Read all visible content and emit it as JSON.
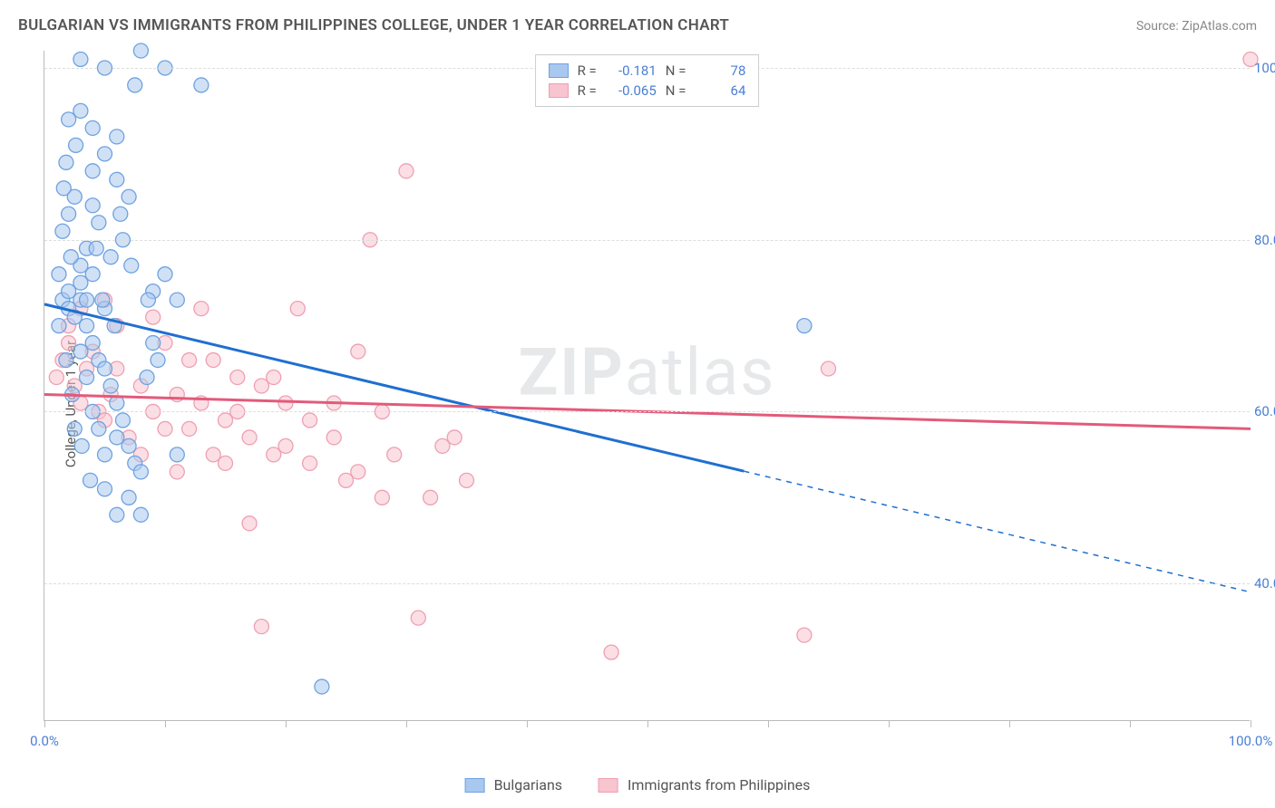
{
  "title": "BULGARIAN VS IMMIGRANTS FROM PHILIPPINES COLLEGE, UNDER 1 YEAR CORRELATION CHART",
  "source": "Source: ZipAtlas.com",
  "watermark_a": "ZIP",
  "watermark_b": "atlas",
  "y_axis_label": "College, Under 1 year",
  "chart": {
    "type": "scatter",
    "background_color": "#ffffff",
    "grid_color": "#dddddd",
    "axis_color": "#bbbbbb",
    "tick_label_color": "#4a7fd4",
    "xlim": [
      0,
      100
    ],
    "ylim": [
      24,
      102
    ],
    "x_ticks": [
      0,
      10,
      20,
      30,
      40,
      50,
      60,
      70,
      80,
      90,
      100
    ],
    "x_tick_labels": [
      {
        "x": 0,
        "label": "0.0%"
      },
      {
        "x": 100,
        "label": "100.0%"
      }
    ],
    "y_gridlines": [
      40,
      60,
      80,
      100
    ],
    "y_tick_labels": [
      {
        "y": 40,
        "label": "40.0%"
      },
      {
        "y": 60,
        "label": "60.0%"
      },
      {
        "y": 80,
        "label": "80.0%"
      },
      {
        "y": 100,
        "label": "100.0%"
      }
    ],
    "marker_radius": 8,
    "marker_opacity": 0.55,
    "line_width": 3
  },
  "series": [
    {
      "name": "Bulgarians",
      "color_fill": "#a9c8ef",
      "color_stroke": "#6ea2e0",
      "line_color": "#1f6fd0",
      "R": "-0.181",
      "N": "78",
      "regression": {
        "x1": 0,
        "y1": 72.5,
        "x2": 100,
        "y2": 39.0,
        "solid_until_x": 58
      },
      "points": [
        [
          1.5,
          73
        ],
        [
          2,
          74
        ],
        [
          2,
          72
        ],
        [
          2.5,
          71
        ],
        [
          3,
          73
        ],
        [
          3,
          75
        ],
        [
          3,
          77
        ],
        [
          3.5,
          70
        ],
        [
          3.5,
          79
        ],
        [
          4,
          68
        ],
        [
          4,
          84
        ],
        [
          4,
          88
        ],
        [
          4.5,
          66
        ],
        [
          4.5,
          82
        ],
        [
          5,
          65
        ],
        [
          5,
          90
        ],
        [
          5,
          72
        ],
        [
          5.5,
          63
        ],
        [
          5.5,
          78
        ],
        [
          6,
          61
        ],
        [
          6,
          87
        ],
        [
          6,
          92
        ],
        [
          6.5,
          59
        ],
        [
          6.5,
          80
        ],
        [
          7,
          56
        ],
        [
          7,
          85
        ],
        [
          7.5,
          54
        ],
        [
          7.5,
          98
        ],
        [
          8,
          53
        ],
        [
          8,
          102
        ],
        [
          8.5,
          64
        ],
        [
          9,
          74
        ],
        [
          9,
          68
        ],
        [
          10,
          100
        ],
        [
          10,
          76
        ],
        [
          11,
          73
        ],
        [
          13,
          98
        ],
        [
          3,
          95
        ],
        [
          4,
          93
        ],
        [
          2,
          83
        ],
        [
          2.5,
          85
        ],
        [
          3,
          67
        ],
        [
          3.5,
          64
        ],
        [
          4,
          60
        ],
        [
          4.5,
          58
        ],
        [
          5,
          55
        ],
        [
          6,
          57
        ],
        [
          7,
          50
        ],
        [
          8,
          48
        ],
        [
          11,
          55
        ],
        [
          23,
          28
        ],
        [
          63,
          70
        ],
        [
          5,
          100
        ],
        [
          3,
          101
        ],
        [
          2,
          94
        ],
        [
          1.8,
          89
        ],
        [
          1.5,
          81
        ],
        [
          1.2,
          76
        ],
        [
          1.2,
          70
        ],
        [
          1.8,
          66
        ],
        [
          2.3,
          62
        ],
        [
          2.5,
          58
        ],
        [
          3.1,
          56
        ],
        [
          3.8,
          52
        ],
        [
          5,
          51
        ],
        [
          6,
          48
        ],
        [
          4,
          76
        ],
        [
          2.2,
          78
        ],
        [
          1.6,
          86
        ],
        [
          2.6,
          91
        ],
        [
          4.3,
          79
        ],
        [
          5.8,
          70
        ],
        [
          6.3,
          83
        ],
        [
          7.2,
          77
        ],
        [
          8.6,
          73
        ],
        [
          9.4,
          66
        ],
        [
          4.8,
          73
        ],
        [
          3.5,
          73
        ]
      ]
    },
    {
      "name": "Immigrants from Philippines",
      "color_fill": "#f7c4cf",
      "color_stroke": "#ef9fb1",
      "line_color": "#e35a7a",
      "R": "-0.065",
      "N": "64",
      "regression": {
        "x1": 0,
        "y1": 62.0,
        "x2": 100,
        "y2": 58.0,
        "solid_until_x": 100
      },
      "points": [
        [
          1,
          64
        ],
        [
          1.5,
          66
        ],
        [
          2,
          68
        ],
        [
          2.5,
          63
        ],
        [
          3,
          61
        ],
        [
          3.5,
          65
        ],
        [
          4,
          67
        ],
        [
          4.5,
          60
        ],
        [
          5,
          59
        ],
        [
          5.5,
          62
        ],
        [
          6,
          70
        ],
        [
          7,
          57
        ],
        [
          8,
          55
        ],
        [
          9,
          71
        ],
        [
          10,
          68
        ],
        [
          11,
          53
        ],
        [
          12,
          58
        ],
        [
          13,
          72
        ],
        [
          14,
          66
        ],
        [
          15,
          54
        ],
        [
          16,
          60
        ],
        [
          17,
          47
        ],
        [
          18,
          35
        ],
        [
          19,
          64
        ],
        [
          20,
          56
        ],
        [
          21,
          72
        ],
        [
          22,
          59
        ],
        [
          24,
          61
        ],
        [
          25,
          52
        ],
        [
          26,
          67
        ],
        [
          27,
          80
        ],
        [
          28,
          50
        ],
        [
          29,
          55
        ],
        [
          30,
          88
        ],
        [
          31,
          36
        ],
        [
          32,
          50
        ],
        [
          33,
          56
        ],
        [
          34,
          57
        ],
        [
          35,
          52
        ],
        [
          47,
          32
        ],
        [
          63,
          34
        ],
        [
          65,
          65
        ],
        [
          100,
          101
        ],
        [
          2,
          70
        ],
        [
          3,
          72
        ],
        [
          5,
          73
        ],
        [
          6,
          65
        ],
        [
          8,
          63
        ],
        [
          9,
          60
        ],
        [
          10,
          58
        ],
        [
          11,
          62
        ],
        [
          12,
          66
        ],
        [
          13,
          61
        ],
        [
          14,
          55
        ],
        [
          15,
          59
        ],
        [
          16,
          64
        ],
        [
          17,
          57
        ],
        [
          18,
          63
        ],
        [
          19,
          55
        ],
        [
          20,
          61
        ],
        [
          22,
          54
        ],
        [
          24,
          57
        ],
        [
          26,
          53
        ],
        [
          28,
          60
        ]
      ]
    }
  ],
  "legend_top": {
    "r_label": "R =",
    "n_label": "N ="
  },
  "legend_bottom": {}
}
